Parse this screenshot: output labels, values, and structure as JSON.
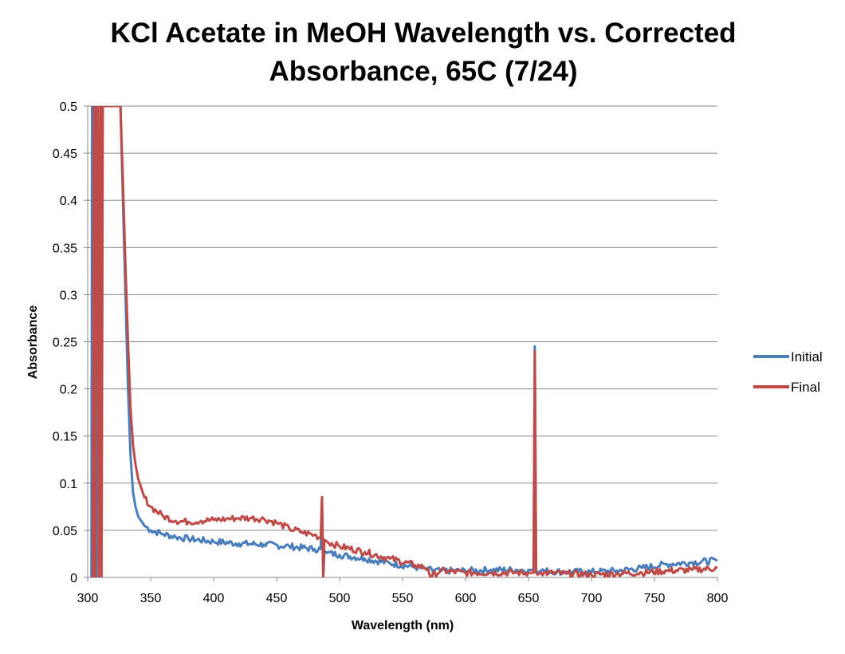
{
  "chart_data": {
    "type": "line",
    "title": [
      "KCl Acetate in MeOH Wavelength vs. Corrected",
      "Absorbance, 65C (7/24)"
    ],
    "xlabel": "Wavelength (nm)",
    "ylabel": "Absorbance",
    "xlim": [
      300,
      800
    ],
    "ylim": [
      0,
      0.5
    ],
    "xticks": [
      300,
      350,
      400,
      450,
      500,
      550,
      600,
      650,
      700,
      750,
      800
    ],
    "yticks": [
      0,
      0.05,
      0.1,
      0.15,
      0.2,
      0.25,
      0.3,
      0.35,
      0.4,
      0.45,
      0.5
    ],
    "ytick_labels": [
      "0",
      "0.05",
      "0.1",
      "0.15",
      "0.2",
      "0.25",
      "0.3",
      "0.35",
      "0.4",
      "0.45",
      "0.5"
    ],
    "grid": "horizontal",
    "legend_position": "right",
    "series": [
      {
        "name": "Initial",
        "color": "#4a7ebb",
        "x": [
          303,
          303.5,
          304,
          305,
          306,
          306.5,
          307,
          308,
          309,
          326,
          328,
          330,
          332,
          334,
          336,
          338,
          340,
          345,
          350,
          360,
          370,
          380,
          400,
          420,
          440,
          460,
          480,
          485,
          486,
          487,
          488,
          490,
          500,
          520,
          540,
          560,
          570,
          580,
          600,
          620,
          640,
          650,
          654,
          655,
          656,
          657,
          660,
          680,
          700,
          720,
          740,
          760,
          780,
          800
        ],
        "y": [
          0,
          0.5,
          0.5,
          0,
          0.5,
          0.5,
          0,
          0.5,
          0.5,
          0.5,
          0.4,
          0.3,
          0.2,
          0.13,
          0.09,
          0.075,
          0.065,
          0.055,
          0.05,
          0.046,
          0.043,
          0.041,
          0.038,
          0.036,
          0.035,
          0.033,
          0.03,
          0.03,
          0.085,
          0,
          0.028,
          0.026,
          0.024,
          0.02,
          0.015,
          0.011,
          0.008,
          0.007,
          0.007,
          0.008,
          0.008,
          0.008,
          0.008,
          0.245,
          0.008,
          0.005,
          0.007,
          0.006,
          0.006,
          0.007,
          0.01,
          0.014,
          0.016,
          0.018
        ]
      },
      {
        "name": "Final",
        "color": "#be4b48",
        "x": [
          304,
          305,
          306,
          307,
          308,
          309,
          310,
          310.5,
          311,
          312,
          313,
          326,
          328,
          330,
          332,
          334,
          336,
          338,
          340,
          345,
          350,
          360,
          370,
          380,
          390,
          400,
          410,
          420,
          430,
          440,
          450,
          460,
          470,
          480,
          485,
          486,
          487,
          488,
          490,
          500,
          520,
          540,
          560,
          570,
          572,
          580,
          600,
          620,
          640,
          650,
          654,
          655,
          656,
          657,
          660,
          680,
          700,
          720,
          740,
          760,
          780,
          800
        ],
        "y": [
          0,
          0.5,
          0,
          0.5,
          0.5,
          0,
          0.5,
          0.5,
          0,
          0.5,
          0.5,
          0.5,
          0.42,
          0.33,
          0.25,
          0.18,
          0.14,
          0.12,
          0.105,
          0.085,
          0.075,
          0.065,
          0.06,
          0.059,
          0.06,
          0.061,
          0.062,
          0.063,
          0.063,
          0.062,
          0.058,
          0.052,
          0.048,
          0.045,
          0.042,
          0.085,
          0,
          0.04,
          0.038,
          0.033,
          0.027,
          0.02,
          0.013,
          0.01,
          0.0,
          0.007,
          0.005,
          0.005,
          0.005,
          0.005,
          0.005,
          0.24,
          0.005,
          0.003,
          0.005,
          0.004,
          0.003,
          0.004,
          0.005,
          0.007,
          0.008,
          0.01
        ]
      }
    ]
  }
}
